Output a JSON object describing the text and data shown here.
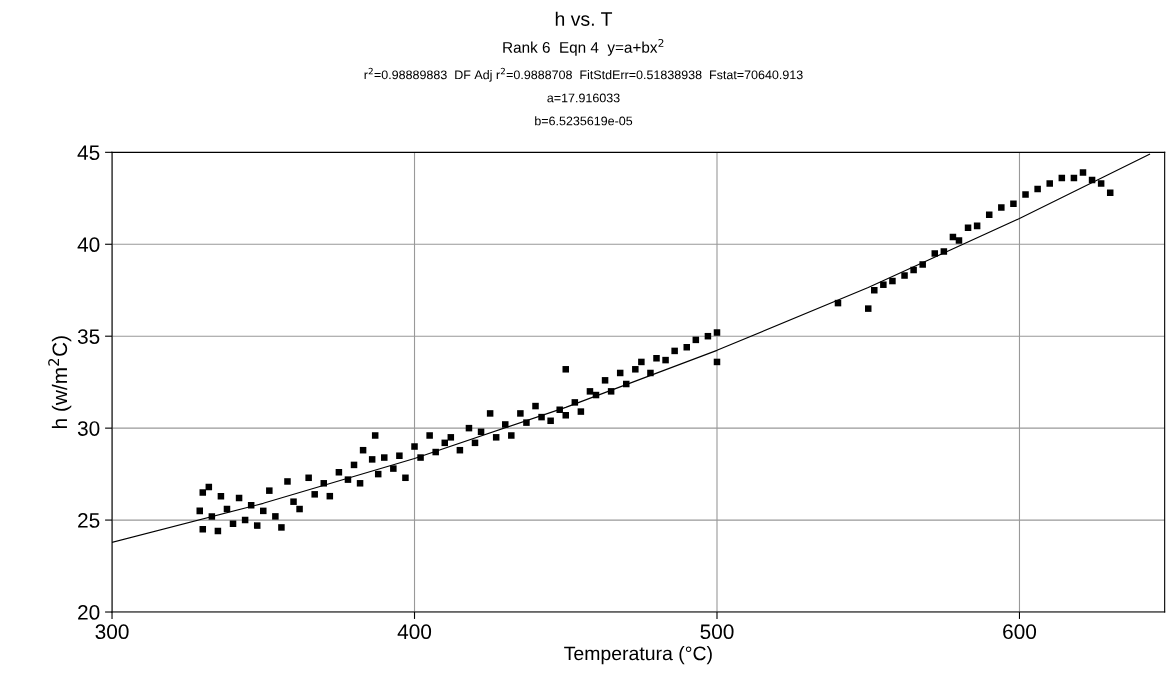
{
  "chart_data": {
    "type": "scatter",
    "title": "h vs. T",
    "subtitle": "Rank 6  Eqn 4  y=a+bx$^{2}$",
    "annotations": [
      "r$^{2}$=0.98889883  DF Adj r$^{2}$=0.9888708  FitStdErr=0.51838938  Fstat=70640.913",
      "a=17.916033",
      "b=6.5235619e-05"
    ],
    "xlabel": "Temperatura (°C)",
    "ylabel": "h (w/m$^{2}$C)",
    "xlim": [
      300,
      648
    ],
    "ylim": [
      20,
      45
    ],
    "xticks": [
      300,
      400,
      500,
      600
    ],
    "yticks": [
      20,
      25,
      30,
      35,
      40,
      45
    ],
    "grid": true,
    "series": [
      {
        "marker": "square",
        "color": "#000000",
        "x": [
          329,
          330,
          330,
          332,
          333,
          335,
          336,
          338,
          340,
          342,
          344,
          346,
          348,
          350,
          352,
          354,
          356,
          358,
          360,
          362,
          365,
          367,
          370,
          372,
          375,
          378,
          380,
          382,
          383,
          386,
          388,
          390,
          393,
          395,
          397,
          400,
          402,
          405,
          407,
          410,
          412,
          415,
          418,
          420,
          422,
          425,
          427,
          430,
          432,
          435,
          437,
          440,
          442,
          445,
          448,
          450,
          453,
          455,
          458,
          460,
          463,
          465,
          468,
          470,
          473,
          475,
          478,
          480,
          483,
          486,
          490,
          493,
          497,
          500,
          500,
          550,
          552,
          555,
          558,
          562,
          565,
          568,
          572,
          575,
          578,
          580,
          583,
          586,
          590,
          594,
          598,
          602,
          606,
          610,
          614,
          618,
          621,
          624,
          627,
          630,
          387,
          450,
          540
        ],
        "values": [
          25.5,
          26.5,
          24.5,
          26.8,
          25.2,
          24.4,
          26.3,
          25.6,
          24.8,
          26.2,
          25.0,
          25.8,
          24.7,
          25.5,
          26.6,
          25.2,
          24.6,
          27.1,
          26.0,
          25.6,
          27.3,
          26.4,
          27.0,
          26.3,
          27.6,
          27.2,
          28.0,
          27.0,
          28.8,
          28.3,
          27.5,
          28.4,
          27.8,
          28.5,
          27.3,
          29.0,
          28.4,
          29.6,
          28.7,
          29.2,
          29.5,
          28.8,
          30.0,
          29.2,
          29.8,
          30.8,
          29.5,
          30.2,
          29.6,
          30.8,
          30.3,
          31.2,
          30.6,
          30.4,
          31.0,
          30.7,
          31.4,
          30.9,
          32.0,
          31.8,
          32.6,
          32.0,
          33.0,
          32.4,
          33.2,
          33.6,
          33.0,
          33.8,
          33.7,
          34.2,
          34.4,
          34.8,
          35.0,
          35.2,
          33.6,
          36.5,
          37.5,
          37.8,
          38.0,
          38.3,
          38.6,
          38.9,
          39.5,
          39.6,
          40.4,
          40.2,
          40.9,
          41.0,
          41.6,
          42.0,
          42.2,
          42.7,
          43.0,
          43.3,
          43.6,
          43.6,
          43.9,
          43.5,
          43.3,
          42.8,
          29.6,
          33.2,
          36.8
        ]
      },
      {
        "type": "line",
        "marker": "none",
        "line_style": "solid",
        "color": "#000000",
        "x": [
          300,
          350,
          400,
          450,
          500,
          550,
          600,
          643
        ],
        "values": [
          23.79,
          25.91,
          28.35,
          31.13,
          34.23,
          37.65,
          41.4,
          44.89
        ]
      }
    ]
  }
}
